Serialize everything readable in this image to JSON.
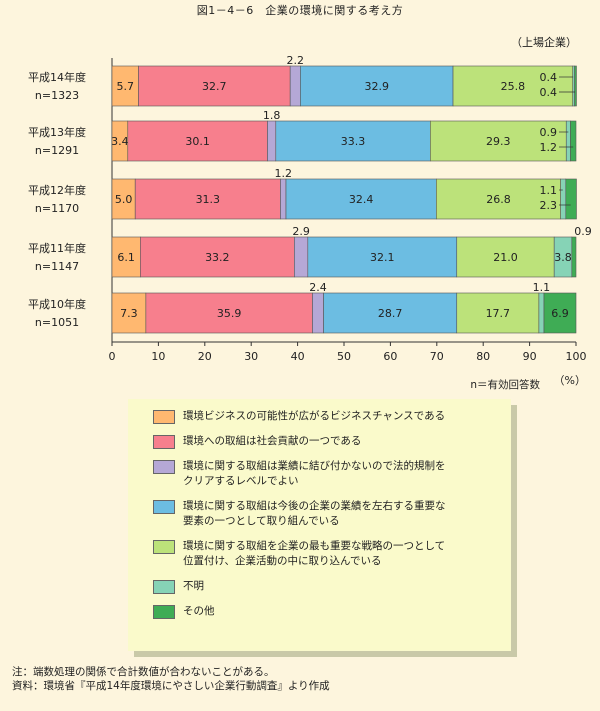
{
  "title": "図1－4－6　企業の環境に関する考え方",
  "unit_note": "（上場企業）",
  "n_label": "n＝有効回答数",
  "x_unit": "（%）",
  "notes": [
    "注：端数処理の関係で合計数値が合わないことがある。",
    "資料：環境省『平成14年度環境にやさしい企業行動調査』より作成"
  ],
  "colors": [
    "#ffb870",
    "#f77f8d",
    "#b5a8d6",
    "#6cbde2",
    "#bce27a",
    "#86d3b6",
    "#3fac55"
  ],
  "chart_data": {
    "type": "bar",
    "orientation": "horizontal",
    "stacked": true,
    "categories": [
      "平成14年度",
      "平成13年度",
      "平成12年度",
      "平成11年度",
      "平成10年度"
    ],
    "n_labels": [
      "n=1323",
      "n=1291",
      "n=1170",
      "n=1147",
      "n=1051"
    ],
    "xlim": [
      0,
      100
    ],
    "xticks": [
      0,
      10,
      20,
      30,
      40,
      50,
      60,
      70,
      80,
      90,
      100
    ],
    "series": [
      {
        "name": "環境ビジネスの可能性が広がるビジネスチャンスである",
        "values": [
          5.7,
          3.4,
          5.0,
          6.1,
          7.3
        ]
      },
      {
        "name": "環境への取組は社会貢献の一つである",
        "values": [
          32.7,
          30.1,
          31.3,
          33.2,
          35.9
        ]
      },
      {
        "name": "環境に関する取組は業績に結び付かないので法的規制を\nクリアするレベルでよい",
        "values": [
          2.2,
          1.8,
          1.2,
          2.9,
          2.4
        ]
      },
      {
        "name": "環境に関する取組は今後の企業の業績を左右する重要な\n要素の一つとして取り組んでいる",
        "values": [
          32.9,
          33.3,
          32.4,
          32.1,
          28.7
        ]
      },
      {
        "name": "環境に関する取組を企業の最も重要な戦略の一つとして\n位置付け、企業活動の中に取り込んでいる",
        "values": [
          25.8,
          29.3,
          26.8,
          21.0,
          17.7
        ]
      },
      {
        "name": "不明",
        "values": [
          0.4,
          0.9,
          1.1,
          3.8,
          1.1
        ]
      },
      {
        "name": "その他",
        "values": [
          0.4,
          1.2,
          2.3,
          0.9,
          6.9
        ]
      }
    ],
    "value_labels": [
      [
        "5.7",
        "32.7",
        "2.2",
        "32.9",
        "25.8",
        "0.4",
        "0.4"
      ],
      [
        "3.4",
        "30.1",
        "1.8",
        "33.3",
        "29.3",
        "0.9",
        "1.2"
      ],
      [
        "5.0",
        "31.3",
        "1.2",
        "32.4",
        "26.8",
        "1.1",
        "2.3"
      ],
      [
        "6.1",
        "33.2",
        "2.9",
        "32.1",
        "21.0",
        "3.8",
        "0.9"
      ],
      [
        "7.3",
        "35.9",
        "2.4",
        "28.7",
        "17.7",
        "1.1",
        "6.9"
      ]
    ],
    "legend_position": "bottom"
  }
}
